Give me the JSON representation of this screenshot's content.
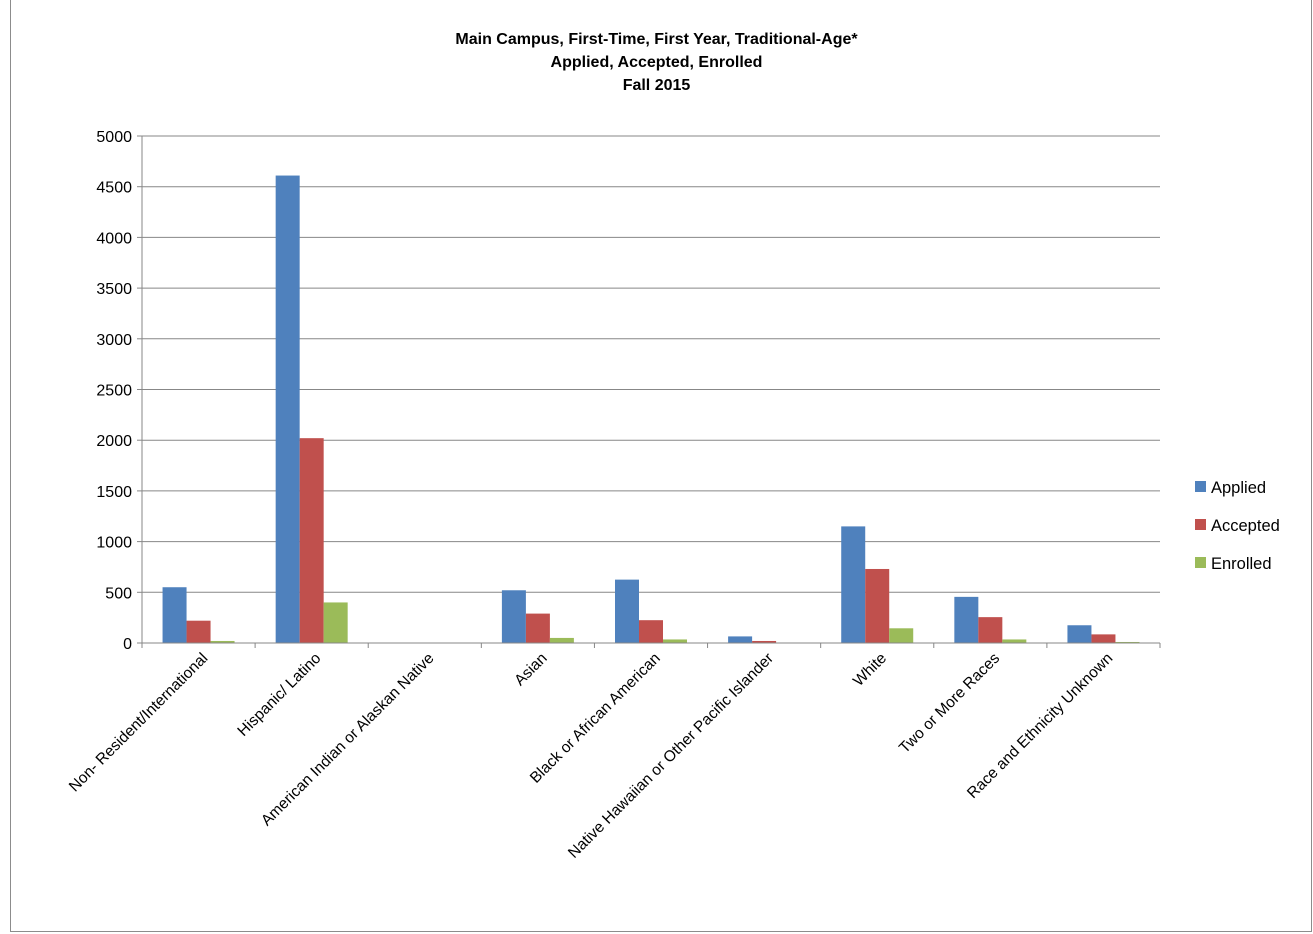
{
  "chart_data": {
    "type": "bar",
    "title_lines": [
      "Main Campus, First-Time, First Year, Traditional-Age*",
      "Applied, Accepted, Enrolled",
      "Fall 2015"
    ],
    "categories": [
      "Non- Resident/International",
      "Hispanic/ Latino",
      "American Indian or Alaskan Native",
      "Asian",
      "Black or African American",
      "Native Hawaiian or Other Pacific Islander",
      "White",
      "Two or More Races",
      "Race and Ethnicity Unknown"
    ],
    "series": [
      {
        "name": "Applied",
        "color": "#4f81bd",
        "values": [
          550,
          4610,
          0,
          520,
          625,
          65,
          1150,
          455,
          175
        ]
      },
      {
        "name": "Accepted",
        "color": "#c0504d",
        "values": [
          220,
          2020,
          0,
          290,
          225,
          20,
          730,
          255,
          85
        ]
      },
      {
        "name": "Enrolled",
        "color": "#9bbb59",
        "values": [
          20,
          400,
          0,
          50,
          35,
          5,
          145,
          35,
          10
        ]
      }
    ],
    "ylim": [
      0,
      5000
    ],
    "yticks": [
      0,
      500,
      1000,
      1500,
      2000,
      2500,
      3000,
      3500,
      4000,
      4500,
      5000
    ],
    "grid": true,
    "legend": "right"
  }
}
